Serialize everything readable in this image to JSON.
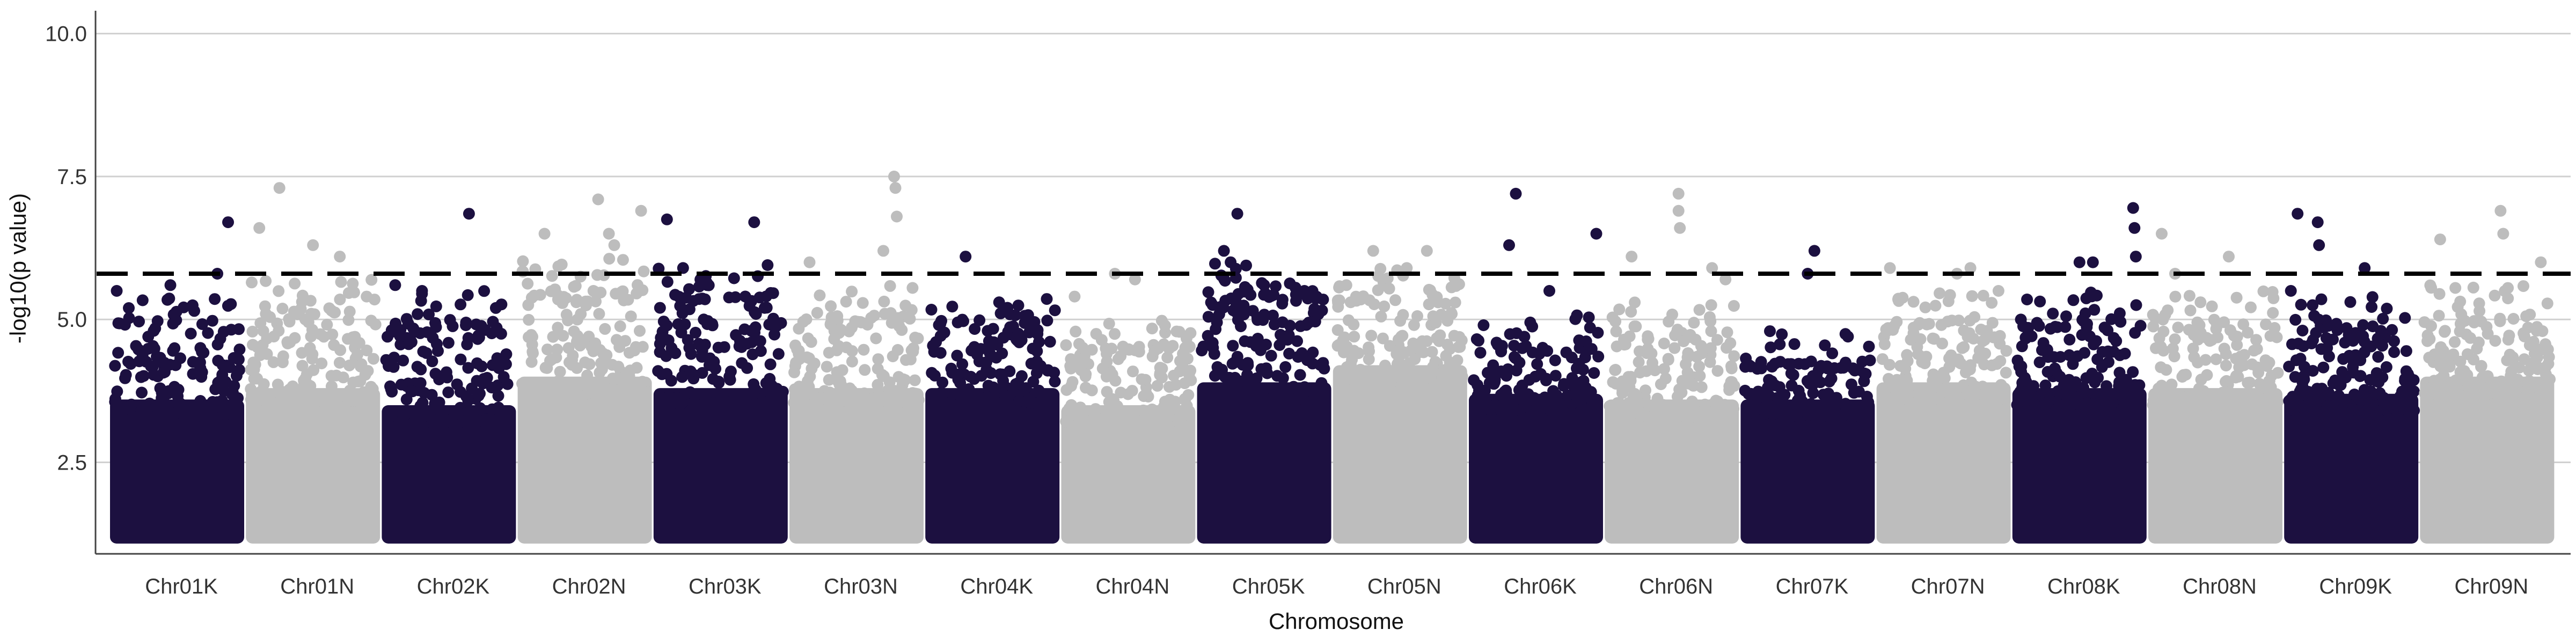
{
  "chart_data": {
    "type": "scatter",
    "subtype": "manhattan",
    "xlabel": "Chromosome",
    "ylabel": "-log10(p value)",
    "ylim": [
      0.9,
      10.4
    ],
    "yticks": [
      2.5,
      5.0,
      7.5,
      10.0
    ],
    "ytick_labels": [
      "2.5",
      "5.0",
      "7.5",
      "10.0"
    ],
    "grid": "horizontal",
    "threshold": 5.8,
    "colors": {
      "odd": "#1c1040",
      "even": "#bdbdbd",
      "threshold_line": "#000000",
      "grid": "#d0d0d0",
      "axis": "#444444"
    },
    "categories": [
      "Chr01K",
      "Chr01N",
      "Chr02K",
      "Chr02N",
      "Chr03K",
      "Chr03N",
      "Chr04K",
      "Chr04N",
      "Chr05K",
      "Chr05N",
      "Chr06K",
      "Chr06N",
      "Chr07K",
      "Chr07N",
      "Chr08K",
      "Chr08N",
      "Chr09K",
      "Chr09N"
    ],
    "series": [
      {
        "chromosome": "Chr01K",
        "color": "odd",
        "dense_top": 3.6,
        "sparse_top": 5.0,
        "peaks": [
          {
            "x": 0.05,
            "y": 5.5
          },
          {
            "x": 0.45,
            "y": 5.6
          },
          {
            "x": 0.8,
            "y": 5.8
          },
          {
            "x": 0.88,
            "y": 6.7
          }
        ]
      },
      {
        "chromosome": "Chr01N",
        "color": "even",
        "dense_top": 3.8,
        "sparse_top": 5.2,
        "peaks": [
          {
            "x": 0.1,
            "y": 6.6
          },
          {
            "x": 0.25,
            "y": 7.3
          },
          {
            "x": 0.5,
            "y": 6.3
          },
          {
            "x": 0.7,
            "y": 6.1
          },
          {
            "x": 0.9,
            "y": 5.4
          }
        ]
      },
      {
        "chromosome": "Chr02K",
        "color": "odd",
        "dense_top": 3.5,
        "sparse_top": 5.0,
        "peaks": [
          {
            "x": 0.1,
            "y": 5.6
          },
          {
            "x": 0.3,
            "y": 5.5
          },
          {
            "x": 0.65,
            "y": 6.85
          },
          {
            "x": 0.85,
            "y": 5.2
          }
        ]
      },
      {
        "chromosome": "Chr02N",
        "color": "even",
        "dense_top": 4.0,
        "sparse_top": 5.6,
        "peaks": [
          {
            "x": 0.2,
            "y": 6.5
          },
          {
            "x": 0.6,
            "y": 7.1
          },
          {
            "x": 0.68,
            "y": 6.5
          },
          {
            "x": 0.72,
            "y": 6.3
          },
          {
            "x": 0.92,
            "y": 6.9
          }
        ]
      },
      {
        "chromosome": "Chr03K",
        "color": "odd",
        "dense_top": 3.8,
        "sparse_top": 5.4,
        "peaks": [
          {
            "x": 0.1,
            "y": 6.75
          },
          {
            "x": 0.22,
            "y": 5.9
          },
          {
            "x": 0.4,
            "y": 5.6
          },
          {
            "x": 0.75,
            "y": 6.7
          },
          {
            "x": 0.85,
            "y": 5.95
          }
        ]
      },
      {
        "chromosome": "Chr03N",
        "color": "even",
        "dense_top": 3.8,
        "sparse_top": 5.1,
        "peaks": [
          {
            "x": 0.15,
            "y": 6.0
          },
          {
            "x": 0.7,
            "y": 6.2
          },
          {
            "x": 0.78,
            "y": 7.5
          },
          {
            "x": 0.79,
            "y": 7.3
          },
          {
            "x": 0.8,
            "y": 6.8
          }
        ]
      },
      {
        "chromosome": "Chr04K",
        "color": "odd",
        "dense_top": 3.8,
        "sparse_top": 5.0,
        "peaks": [
          {
            "x": 0.3,
            "y": 6.1
          },
          {
            "x": 0.55,
            "y": 5.3
          },
          {
            "x": 0.7,
            "y": 4.6
          }
        ]
      },
      {
        "chromosome": "Chr04N",
        "color": "even",
        "dense_top": 3.5,
        "sparse_top": 4.6,
        "peaks": [
          {
            "x": 0.1,
            "y": 5.4
          },
          {
            "x": 0.4,
            "y": 5.8
          },
          {
            "x": 0.55,
            "y": 5.7
          }
        ]
      },
      {
        "chromosome": "Chr05K",
        "color": "odd",
        "dense_top": 3.9,
        "sparse_top": 5.5,
        "peaks": [
          {
            "x": 0.2,
            "y": 6.2
          },
          {
            "x": 0.25,
            "y": 6.0
          },
          {
            "x": 0.3,
            "y": 6.85
          },
          {
            "x": 0.5,
            "y": 5.6
          },
          {
            "x": 0.8,
            "y": 5.5
          }
        ]
      },
      {
        "chromosome": "Chr05N",
        "color": "even",
        "dense_top": 4.2,
        "sparse_top": 5.4,
        "peaks": [
          {
            "x": 0.1,
            "y": 5.6
          },
          {
            "x": 0.3,
            "y": 6.2
          },
          {
            "x": 0.55,
            "y": 5.9
          },
          {
            "x": 0.7,
            "y": 6.2
          }
        ]
      },
      {
        "chromosome": "Chr06K",
        "color": "odd",
        "dense_top": 3.7,
        "sparse_top": 4.6,
        "peaks": [
          {
            "x": 0.3,
            "y": 6.3
          },
          {
            "x": 0.35,
            "y": 7.2
          },
          {
            "x": 0.6,
            "y": 5.5
          },
          {
            "x": 0.95,
            "y": 6.5
          }
        ]
      },
      {
        "chromosome": "Chr06N",
        "color": "even",
        "dense_top": 3.6,
        "sparse_top": 4.8,
        "peaks": [
          {
            "x": 0.2,
            "y": 6.1
          },
          {
            "x": 0.55,
            "y": 7.2
          },
          {
            "x": 0.55,
            "y": 6.9
          },
          {
            "x": 0.56,
            "y": 6.6
          },
          {
            "x": 0.8,
            "y": 5.9
          },
          {
            "x": 0.9,
            "y": 5.7
          }
        ]
      },
      {
        "chromosome": "Chr07K",
        "color": "odd",
        "dense_top": 3.6,
        "sparse_top": 4.3,
        "peaks": [
          {
            "x": 0.5,
            "y": 5.8
          },
          {
            "x": 0.55,
            "y": 6.2
          },
          {
            "x": 0.8,
            "y": 4.7
          }
        ]
      },
      {
        "chromosome": "Chr07N",
        "color": "even",
        "dense_top": 3.9,
        "sparse_top": 5.0,
        "peaks": [
          {
            "x": 0.1,
            "y": 5.9
          },
          {
            "x": 0.6,
            "y": 5.8
          },
          {
            "x": 0.7,
            "y": 5.9
          }
        ]
      },
      {
        "chromosome": "Chr08K",
        "color": "odd",
        "dense_top": 3.8,
        "sparse_top": 5.0,
        "peaks": [
          {
            "x": 0.5,
            "y": 6.0
          },
          {
            "x": 0.6,
            "y": 6.0
          },
          {
            "x": 0.9,
            "y": 6.95
          },
          {
            "x": 0.91,
            "y": 6.6
          },
          {
            "x": 0.92,
            "y": 6.1
          }
        ]
      },
      {
        "chromosome": "Chr08N",
        "color": "even",
        "dense_top": 3.8,
        "sparse_top": 5.0,
        "peaks": [
          {
            "x": 0.1,
            "y": 6.5
          },
          {
            "x": 0.2,
            "y": 5.8
          },
          {
            "x": 0.6,
            "y": 6.1
          }
        ]
      },
      {
        "chromosome": "Chr09K",
        "color": "odd",
        "dense_top": 3.7,
        "sparse_top": 4.9,
        "peaks": [
          {
            "x": 0.05,
            "y": 5.5
          },
          {
            "x": 0.1,
            "y": 6.85
          },
          {
            "x": 0.25,
            "y": 6.7
          },
          {
            "x": 0.26,
            "y": 6.3
          },
          {
            "x": 0.6,
            "y": 5.9
          }
        ]
      },
      {
        "chromosome": "Chr09N",
        "color": "even",
        "dense_top": 4.0,
        "sparse_top": 5.1,
        "peaks": [
          {
            "x": 0.15,
            "y": 6.4
          },
          {
            "x": 0.6,
            "y": 6.9
          },
          {
            "x": 0.62,
            "y": 6.5
          },
          {
            "x": 0.9,
            "y": 6.0
          }
        ]
      }
    ]
  }
}
